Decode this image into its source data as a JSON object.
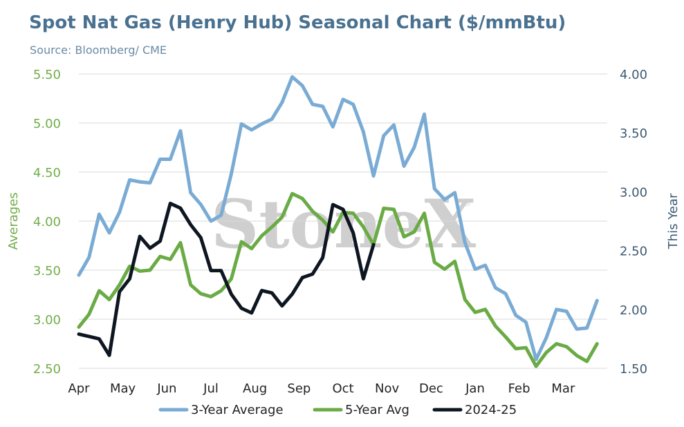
{
  "title": "Spot Nat Gas (Henry Hub) Seasonal Chart ($/mmBtu)",
  "subtitle": "Source: Bloomberg/ CME",
  "watermark": "StoneX",
  "watermark_mark": "®",
  "colors": {
    "three_year": "#7aabd4",
    "five_year": "#6aab45",
    "this_year": "#0e1621",
    "left_axis": "#70ad47",
    "right_axis": "#3d5a73"
  },
  "chart_data": {
    "type": "line",
    "xlabel": "",
    "y_left": {
      "label": "Averages",
      "ylim": [
        2.5,
        5.5
      ],
      "ticks": [
        "2.50",
        "3.00",
        "3.50",
        "4.00",
        "4.50",
        "5.00",
        "5.50"
      ]
    },
    "y_right": {
      "label": "This Year",
      "ylim": [
        1.5,
        4.0
      ],
      "ticks": [
        "1.50",
        "2.00",
        "2.50",
        "3.00",
        "3.50",
        "4.00"
      ]
    },
    "x_ticks": [
      "Apr",
      "May",
      "Jun",
      "Jul",
      "Aug",
      "Sep",
      "Oct",
      "Nov",
      "Dec",
      "Jan",
      "Feb",
      "Mar"
    ],
    "x_range": [
      0,
      52
    ],
    "x_tick_positions": [
      0,
      4.33,
      8.67,
      13,
      17.33,
      21.67,
      26,
      30.33,
      34.67,
      39,
      43.33,
      47.67
    ],
    "grid": "horizontal",
    "legend_position": "bottom",
    "series": [
      {
        "name": "3-Year Average",
        "axis": "left",
        "values": [
          3.45,
          3.63,
          4.07,
          3.88,
          4.09,
          4.42,
          4.4,
          4.39,
          4.63,
          4.63,
          4.92,
          4.29,
          4.17,
          4.0,
          4.06,
          4.48,
          4.99,
          4.93,
          4.99,
          5.04,
          5.21,
          5.47,
          5.38,
          5.19,
          5.17,
          4.96,
          5.24,
          5.19,
          4.91,
          4.46,
          4.87,
          4.98,
          4.56,
          4.75,
          5.09,
          4.33,
          4.22,
          4.29,
          3.78,
          3.51,
          3.55,
          3.32,
          3.26,
          3.04,
          2.97,
          2.59,
          2.81,
          3.1,
          3.08,
          2.9,
          2.91,
          3.19
        ]
      },
      {
        "name": "5-Year Avg",
        "axis": "left",
        "values": [
          2.92,
          3.05,
          3.29,
          3.2,
          3.35,
          3.54,
          3.49,
          3.5,
          3.64,
          3.61,
          3.78,
          3.35,
          3.26,
          3.23,
          3.29,
          3.41,
          3.79,
          3.72,
          3.85,
          3.94,
          4.04,
          4.28,
          4.23,
          4.1,
          4.01,
          3.89,
          4.09,
          4.08,
          3.94,
          3.76,
          4.13,
          4.12,
          3.84,
          3.89,
          4.08,
          3.58,
          3.51,
          3.59,
          3.2,
          3.07,
          3.1,
          2.93,
          2.82,
          2.7,
          2.71,
          2.52,
          2.66,
          2.75,
          2.72,
          2.63,
          2.57,
          2.75
        ]
      },
      {
        "name": "2024-25",
        "axis": "right",
        "values": [
          1.79,
          1.77,
          1.75,
          1.61,
          2.15,
          2.26,
          2.62,
          2.52,
          2.58,
          2.9,
          2.86,
          2.72,
          2.61,
          2.33,
          2.33,
          2.13,
          2.01,
          1.97,
          2.16,
          2.14,
          2.03,
          2.13,
          2.27,
          2.3,
          2.44,
          2.89,
          2.85,
          2.65,
          2.26,
          2.55
        ]
      }
    ]
  }
}
